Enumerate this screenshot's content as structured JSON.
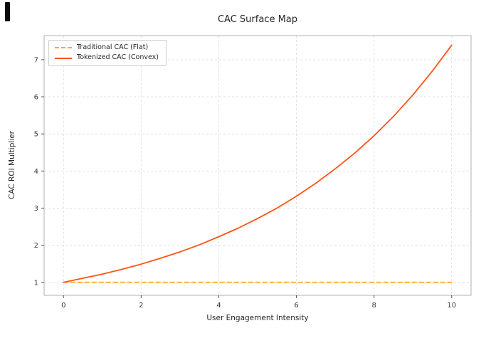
{
  "chart_data": {
    "type": "line",
    "title": "CAC Surface Map",
    "xlabel": "User Engagement Intensity",
    "ylabel": "CAC ROI Multiplier",
    "xlim": [
      -0.5,
      10.5
    ],
    "ylim": [
      0.65,
      7.65
    ],
    "xticks": [
      0,
      2,
      4,
      6,
      8,
      10
    ],
    "yticks": [
      1,
      2,
      3,
      4,
      5,
      6,
      7
    ],
    "grid": true,
    "grid_style": "dashed",
    "legend_position": "upper left",
    "x": [
      0,
      0.5,
      1,
      1.5,
      2,
      2.5,
      3,
      3.5,
      4,
      4.5,
      5,
      5.5,
      6,
      6.5,
      7,
      7.5,
      8,
      8.5,
      9,
      9.5,
      10
    ],
    "series": [
      {
        "name": "Traditional CAC (Flat)",
        "color": "#FFA726",
        "style": "dashed",
        "values": [
          1,
          1,
          1,
          1,
          1,
          1,
          1,
          1,
          1,
          1,
          1,
          1,
          1,
          1,
          1,
          1,
          1,
          1,
          1,
          1,
          1
        ]
      },
      {
        "name": "Tokenized CAC (Convex)",
        "color": "#FF5215",
        "style": "solid",
        "values": [
          1.0,
          1.11,
          1.22,
          1.35,
          1.49,
          1.65,
          1.82,
          2.01,
          2.23,
          2.46,
          2.72,
          3.0,
          3.32,
          3.67,
          4.06,
          4.48,
          4.95,
          5.47,
          6.05,
          6.69,
          7.39
        ]
      }
    ],
    "colors": {
      "grid": "#dedede",
      "frame": "#b0b0b0",
      "tick": "#555555",
      "text": "#262626"
    }
  }
}
